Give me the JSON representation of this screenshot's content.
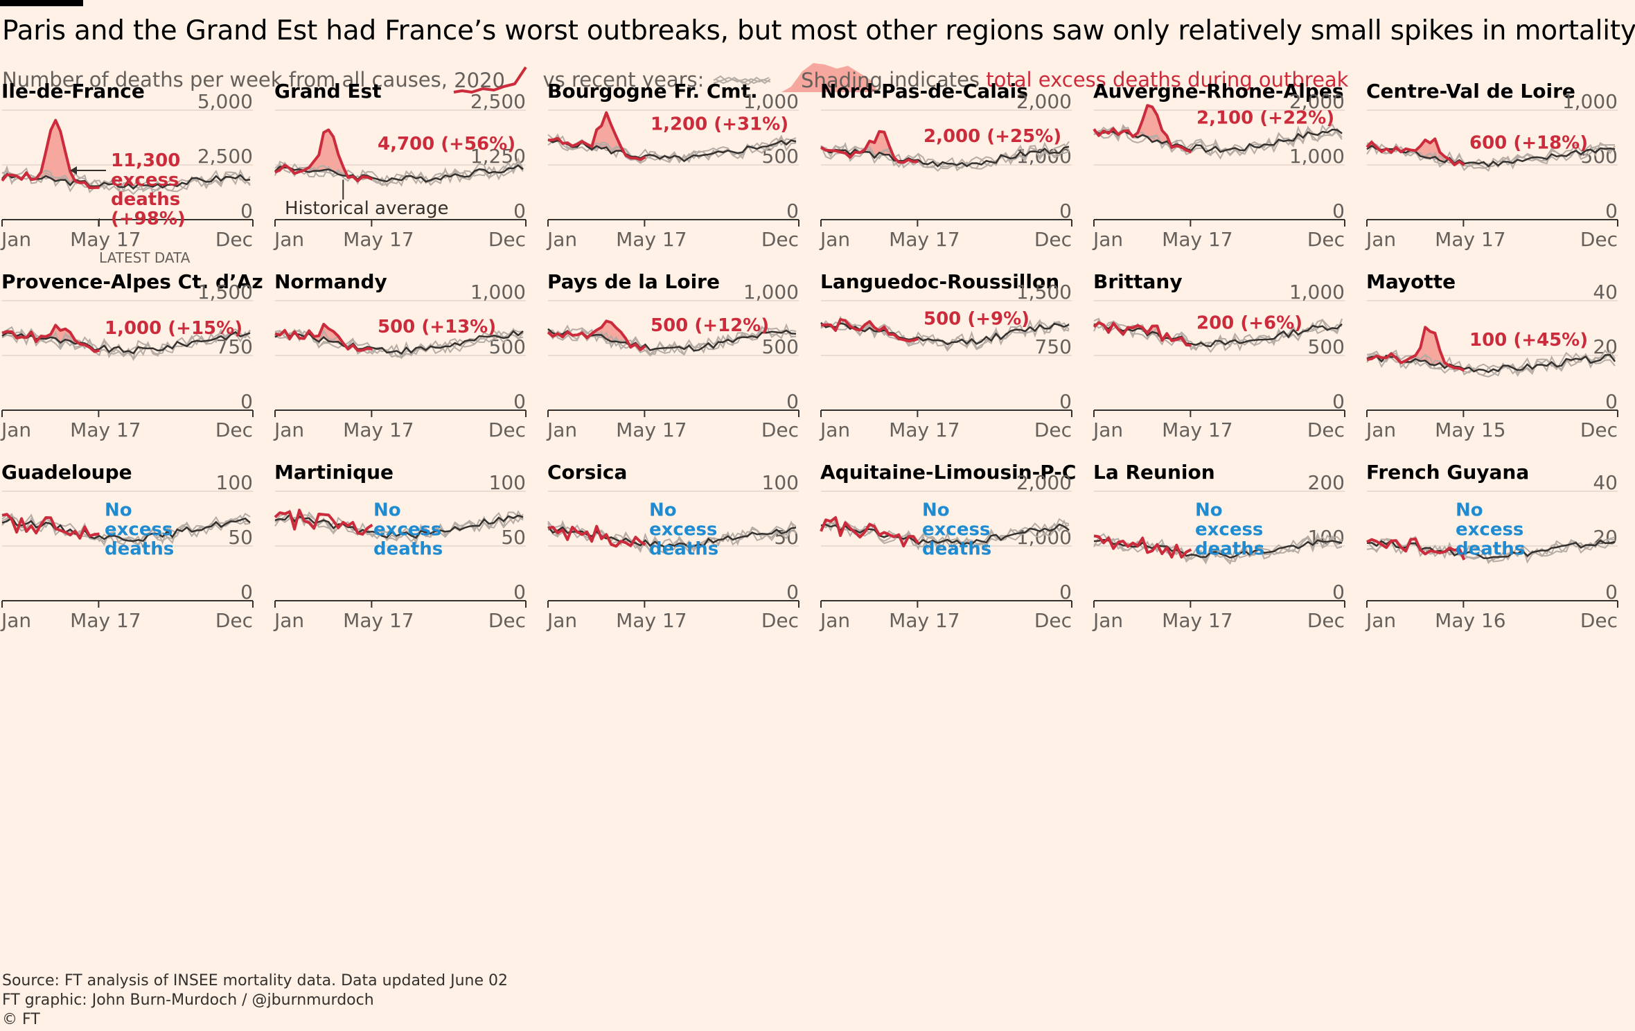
{
  "title": "Paris and the Grand Est had France’s worst outbreaks, but most other regions saw only relatively small spikes in mortality",
  "legend": {
    "prefix": "Number of deaths per week from all causes,",
    "year": "2020",
    "vs": "vs recent years:",
    "shading": "Shading",
    "indicates": "indicates",
    "excess": "total excess deaths during outbreak"
  },
  "annotations": {
    "latest": "LATEST DATA",
    "historical": "Historical average"
  },
  "footer": {
    "source": "Source: FT analysis of INSEE mortality data. Data updated June 02",
    "graphic": "FT graphic: John Burn-Murdoch / @jburnmurdoch",
    "copyright": "© FT"
  },
  "colors": {
    "background": "#fff1e5",
    "line_2020": "#cc2b3c",
    "shading": "#f6a79e",
    "average": "#33302e",
    "recent_years": "#b5aca6",
    "no_excess": "#1f8bd1"
  },
  "chart_data": [
    {
      "type": "line",
      "title": "Ile-de-France",
      "ylim": [
        0,
        5000
      ],
      "yticks": [
        "5,000",
        "2,500",
        "0"
      ],
      "xticks": [
        "Jan",
        "May 17",
        "Dec"
      ],
      "baseline": 1750,
      "peak_week": 11,
      "peak_value": 4600,
      "label": [
        "11,300",
        "excess",
        "deaths",
        "(+98%)"
      ]
    },
    {
      "type": "line",
      "title": "Grand Est",
      "ylim": [
        0,
        2500
      ],
      "yticks": [
        "2,500",
        "1,250",
        "0"
      ],
      "xticks": [
        "Jan",
        "May 17",
        "Dec"
      ],
      "baseline": 1050,
      "peak_week": 11,
      "peak_value": 2100,
      "label": [
        "4,700 (+56%)"
      ]
    },
    {
      "type": "line",
      "title": "Bourgogne Fr. Cmt.",
      "ylim": [
        0,
        1000
      ],
      "yticks": [
        "1,000",
        "500",
        "0"
      ],
      "xticks": [
        "Jan",
        "May 17",
        "Dec"
      ],
      "baseline": 630,
      "peak_week": 12,
      "peak_value": 950,
      "label": [
        "1,200 (+31%)"
      ]
    },
    {
      "type": "line",
      "title": "Nord-Pas-de-Calais",
      "ylim": [
        0,
        2000
      ],
      "yticks": [
        "2,000",
        "1,000",
        "0"
      ],
      "xticks": [
        "Jan",
        "May 17",
        "Dec"
      ],
      "baseline": 1150,
      "peak_week": 12,
      "peak_value": 1650,
      "label": [
        "2,000 (+25%)"
      ]
    },
    {
      "type": "line",
      "title": "Auvergne-Rhone-Alpes",
      "ylim": [
        0,
        2000
      ],
      "yticks": [
        "2,000",
        "1,000",
        "0"
      ],
      "xticks": [
        "Jan",
        "May 17",
        "Dec"
      ],
      "baseline": 1450,
      "peak_week": 12,
      "peak_value": 2050,
      "label": [
        "2,100 (+22%)"
      ]
    },
    {
      "type": "line",
      "title": "Centre-Val de Loire",
      "ylim": [
        0,
        1000
      ],
      "yticks": [
        "1,000",
        "500",
        "0"
      ],
      "xticks": [
        "Jan",
        "May 17",
        "Dec"
      ],
      "baseline": 580,
      "peak_week": 13,
      "peak_value": 720,
      "label": [
        "600 (+18%)"
      ]
    },
    {
      "type": "line",
      "title": "Provence-Alpes Ct. d’Az",
      "ylim": [
        0,
        1500
      ],
      "yticks": [
        "1,500",
        "750",
        "0"
      ],
      "xticks": [
        "Jan",
        "May 17",
        "Dec"
      ],
      "baseline": 930,
      "peak_week": 12,
      "peak_value": 1120,
      "label": [
        "1,000 (+15%)"
      ]
    },
    {
      "type": "line",
      "title": "Normandy",
      "ylim": [
        0,
        1000
      ],
      "yticks": [
        "1,000",
        "500",
        "0"
      ],
      "xticks": [
        "Jan",
        "May 17",
        "Dec"
      ],
      "baseline": 620,
      "peak_week": 11,
      "peak_value": 740,
      "label": [
        "500 (+13%)"
      ]
    },
    {
      "type": "line",
      "title": "Pays de la Loire",
      "ylim": [
        0,
        1000
      ],
      "yticks": [
        "1,000",
        "500",
        "0"
      ],
      "xticks": [
        "Jan",
        "May 17",
        "Dec"
      ],
      "baseline": 640,
      "peak_week": 13,
      "peak_value": 790,
      "label": [
        "500 (+12%)"
      ]
    },
    {
      "type": "line",
      "title": "Languedoc-Roussillon",
      "ylim": [
        0,
        1500
      ],
      "yticks": [
        "1,500",
        "750",
        "0"
      ],
      "xticks": [
        "Jan",
        "May 17",
        "Dec"
      ],
      "baseline": 1050,
      "peak_week": 10,
      "peak_value": 1210,
      "label": [
        "500 (+9%)"
      ]
    },
    {
      "type": "line",
      "title": "Brittany",
      "ylim": [
        0,
        1000
      ],
      "yticks": [
        "1,000",
        "500",
        "0"
      ],
      "xticks": [
        "Jan",
        "May 17",
        "Dec"
      ],
      "baseline": 690,
      "peak_week": 12,
      "peak_value": 760,
      "label": [
        "200 (+6%)"
      ]
    },
    {
      "type": "line",
      "title": "Mayotte",
      "ylim": [
        0,
        40
      ],
      "yticks": [
        "40",
        "20",
        "0"
      ],
      "xticks": [
        "Jan",
        "May 15",
        "Dec"
      ],
      "baseline": 17,
      "peak_week": 13,
      "peak_value": 30,
      "label": [
        "100 (+45%)"
      ]
    },
    {
      "type": "line",
      "title": "Guadeloupe",
      "ylim": [
        0,
        100
      ],
      "yticks": [
        "100",
        "50",
        "0"
      ],
      "xticks": [
        "Jan",
        "May 17",
        "Dec"
      ],
      "baseline": 65,
      "peak_week": 0,
      "peak_value": 0,
      "label": [
        "No",
        "excess",
        "deaths"
      ]
    },
    {
      "type": "line",
      "title": "Martinique",
      "ylim": [
        0,
        100
      ],
      "yticks": [
        "100",
        "50",
        "0"
      ],
      "xticks": [
        "Jan",
        "May 17",
        "Dec"
      ],
      "baseline": 68,
      "peak_week": 0,
      "peak_value": 0,
      "label": [
        "No",
        "excess",
        "deaths"
      ]
    },
    {
      "type": "line",
      "title": "Corsica",
      "ylim": [
        0,
        100
      ],
      "yticks": [
        "100",
        "50",
        "0"
      ],
      "xticks": [
        "Jan",
        "May 17",
        "Dec"
      ],
      "baseline": 58,
      "peak_week": 0,
      "peak_value": 0,
      "label": [
        "No",
        "excess",
        "deaths"
      ]
    },
    {
      "type": "line",
      "title": "Aquitaine-Limousin-P-C",
      "ylim": [
        0,
        2000
      ],
      "yticks": [
        "2,000",
        "1,000",
        "0"
      ],
      "xticks": [
        "Jan",
        "May 17",
        "Dec"
      ],
      "baseline": 1200,
      "peak_week": 0,
      "peak_value": 0,
      "label": [
        "No",
        "excess",
        "deaths"
      ]
    },
    {
      "type": "line",
      "title": "La Reunion",
      "ylim": [
        0,
        200
      ],
      "yticks": [
        "200",
        "100",
        "0"
      ],
      "xticks": [
        "Jan",
        "May 17",
        "Dec"
      ],
      "baseline": 96,
      "peak_week": 0,
      "peak_value": 0,
      "label": [
        "No",
        "excess",
        "deaths"
      ]
    },
    {
      "type": "line",
      "title": "French Guyana",
      "ylim": [
        0,
        40
      ],
      "yticks": [
        "40",
        "20",
        "0"
      ],
      "xticks": [
        "Jan",
        "May 16",
        "Dec"
      ],
      "baseline": 19,
      "peak_week": 0,
      "peak_value": 0,
      "label": [
        "No",
        "excess",
        "deaths"
      ]
    }
  ]
}
